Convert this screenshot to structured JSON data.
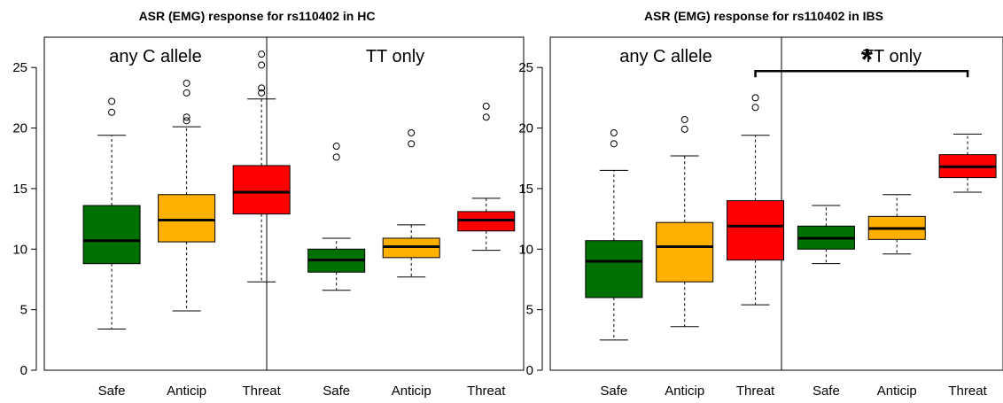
{
  "chart_data": [
    {
      "type": "boxplot",
      "title": "ASR (EMG) response for rs110402 in HC",
      "xlabel": "",
      "ylabel": "",
      "ylim": [
        0,
        27.5
      ],
      "yticks": [
        0,
        5,
        10,
        15,
        20,
        25
      ],
      "groups": [
        "any C allele",
        "TT only"
      ],
      "categories": [
        "Safe",
        "Anticip",
        "Threat",
        "Safe",
        "Anticip",
        "Threat"
      ],
      "boxes": [
        {
          "color": "#007000",
          "whisker_low": 3.4,
          "q1": 8.8,
          "median": 10.7,
          "q3": 13.6,
          "whisker_high": 19.4,
          "outliers": [
            21.3,
            22.2
          ]
        },
        {
          "color": "#FFB000",
          "whisker_low": 4.9,
          "q1": 10.6,
          "median": 12.4,
          "q3": 14.5,
          "whisker_high": 20.1,
          "outliers": [
            20.6,
            20.9,
            22.9,
            23.7
          ]
        },
        {
          "color": "#FF0000",
          "whisker_low": 7.3,
          "q1": 12.9,
          "median": 14.7,
          "q3": 16.9,
          "whisker_high": 22.4,
          "outliers": [
            22.9,
            23.3,
            25.2,
            26.1
          ]
        },
        {
          "color": "#007000",
          "whisker_low": 6.6,
          "q1": 8.1,
          "median": 9.1,
          "q3": 10.0,
          "whisker_high": 10.9,
          "outliers": [
            17.6,
            18.5
          ]
        },
        {
          "color": "#FFB000",
          "whisker_low": 7.7,
          "q1": 9.3,
          "median": 10.2,
          "q3": 10.9,
          "whisker_high": 12.0,
          "outliers": [
            18.7,
            19.6
          ]
        },
        {
          "color": "#FF0000",
          "whisker_low": 9.9,
          "q1": 11.5,
          "median": 12.4,
          "q3": 13.1,
          "whisker_high": 14.2,
          "outliers": [
            20.9,
            21.8
          ]
        }
      ]
    },
    {
      "type": "boxplot",
      "title": "ASR (EMG) response for rs110402 in IBS",
      "xlabel": "",
      "ylabel": "",
      "ylim": [
        0,
        27.5
      ],
      "yticks": [
        0,
        5,
        10,
        15,
        20,
        25
      ],
      "groups": [
        "any C allele",
        "TT only"
      ],
      "categories": [
        "Safe",
        "Anticip",
        "Threat",
        "Safe",
        "Anticip",
        "Threat"
      ],
      "boxes": [
        {
          "color": "#007000",
          "whisker_low": 2.5,
          "q1": 6.0,
          "median": 9.0,
          "q3": 10.7,
          "whisker_high": 16.5,
          "outliers": [
            18.7,
            19.6
          ]
        },
        {
          "color": "#FFB000",
          "whisker_low": 3.6,
          "q1": 7.3,
          "median": 10.2,
          "q3": 12.2,
          "whisker_high": 17.7,
          "outliers": [
            19.9,
            20.7
          ]
        },
        {
          "color": "#FF0000",
          "whisker_low": 5.4,
          "q1": 9.1,
          "median": 11.9,
          "q3": 14.0,
          "whisker_high": 19.4,
          "outliers": [
            21.7,
            22.5
          ]
        },
        {
          "color": "#007000",
          "whisker_low": 8.8,
          "q1": 10.0,
          "median": 10.9,
          "q3": 11.9,
          "whisker_high": 13.6,
          "outliers": []
        },
        {
          "color": "#FFB000",
          "whisker_low": 9.6,
          "q1": 10.8,
          "median": 11.7,
          "q3": 12.7,
          "whisker_high": 14.5,
          "outliers": []
        },
        {
          "color": "#FF0000",
          "whisker_low": 14.7,
          "q1": 15.9,
          "median": 16.8,
          "q3": 17.8,
          "whisker_high": 19.5,
          "outliers": []
        }
      ],
      "significance": {
        "from_index": 2,
        "to_index": 5,
        "y": 24.7,
        "label": "*"
      }
    }
  ]
}
